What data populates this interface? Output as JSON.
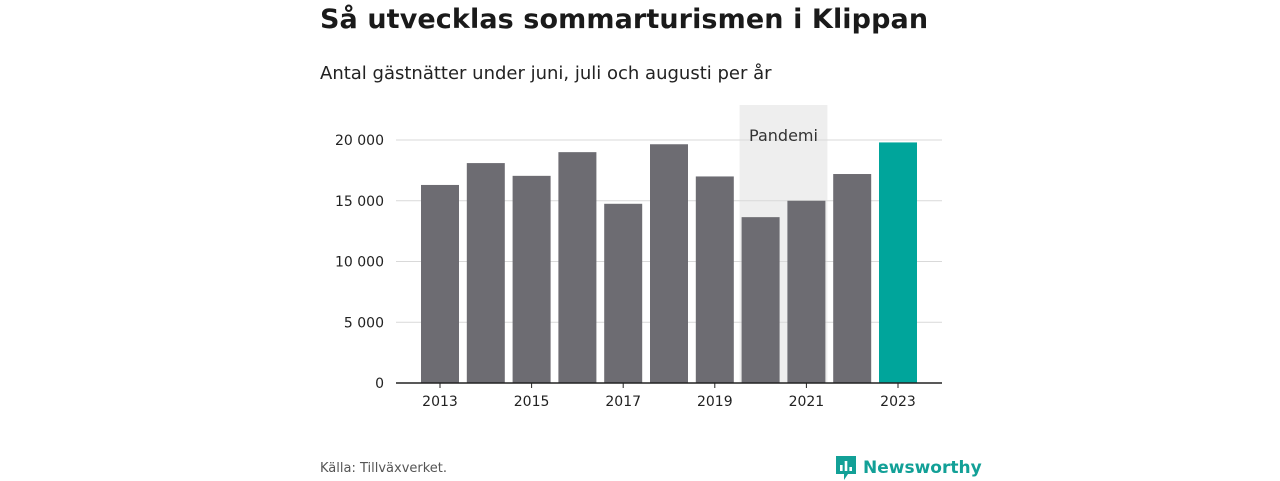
{
  "header": {
    "title": "Så utvecklas sommarturismen i Klippan",
    "subtitle": "Antal gästnätter under juni, juli och augusti per år"
  },
  "footer": {
    "source": "Källa: Tillväxverket.",
    "brand": "Newsworthy"
  },
  "colors": {
    "bar": "#6d6c72",
    "highlight": "#00a59b",
    "annotation_band": "#eeeeee",
    "brand": "#12a097"
  },
  "chart_data": {
    "type": "bar",
    "title": "Så utvecklas sommarturismen i Klippan",
    "subtitle": "Antal gästnätter under juni, juli och augusti per år",
    "categories": [
      "2013",
      "2014",
      "2015",
      "2016",
      "2017",
      "2018",
      "2019",
      "2020",
      "2021",
      "2022",
      "2023"
    ],
    "values": [
      16300,
      18100,
      17050,
      19000,
      14750,
      19650,
      17000,
      13650,
      15000,
      17200,
      19800
    ],
    "highlight_category": "2023",
    "x_tick_labels": [
      "2013",
      "2015",
      "2017",
      "2019",
      "2021",
      "2023"
    ],
    "y_ticks": [
      0,
      5000,
      10000,
      15000,
      20000
    ],
    "y_tick_labels": [
      "0",
      "5 000",
      "10 000",
      "15 000",
      "20 000"
    ],
    "ylim": [
      0,
      20000
    ],
    "grid": true,
    "annotation": {
      "label": "Pandemi",
      "from": "2020",
      "to": "2021"
    }
  }
}
